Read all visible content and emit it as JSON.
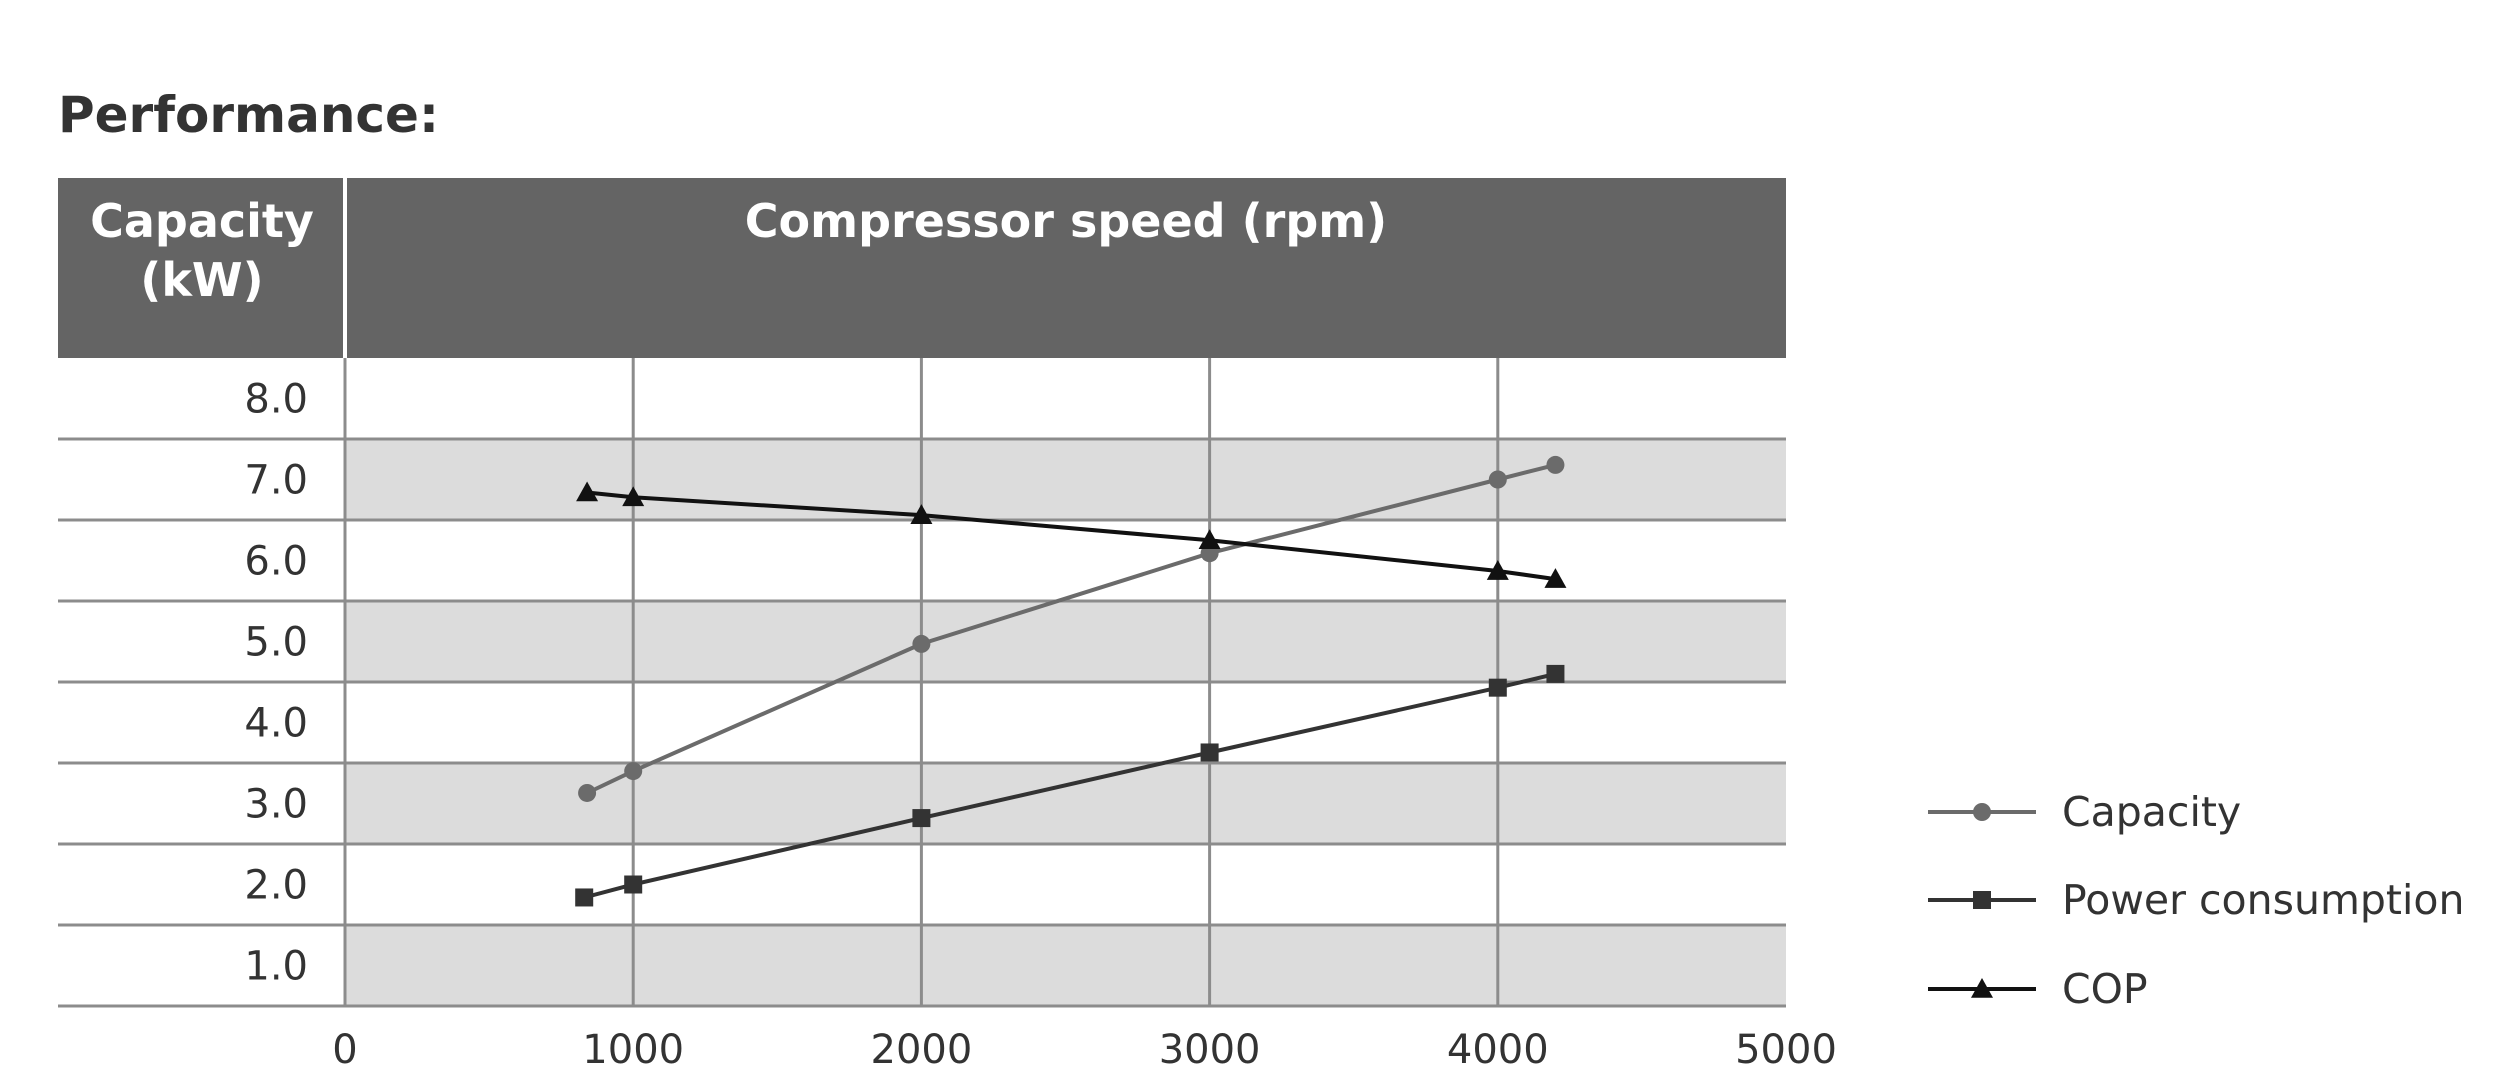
{
  "title": "Performance:",
  "header": {
    "left_line1": "Capacity",
    "left_line2": "(kW)",
    "main": "Compressor speed (rpm)"
  },
  "chart_data": {
    "type": "line",
    "title": "Performance:",
    "xlabel": "Compressor speed (rpm)",
    "ylabel": "Capacity (kW)",
    "xlim": [
      0,
      5000
    ],
    "ylim": [
      0.5,
      8.5
    ],
    "x_ticks": [
      "0",
      "1000",
      "2000",
      "3000",
      "4000",
      "5000"
    ],
    "y_ticks": [
      "1.0",
      "2.0",
      "3.0",
      "4.0",
      "5.0",
      "6.0",
      "7.0",
      "8.0"
    ],
    "grid": "alternating horizontal bands with vertical gridlines",
    "legend": "right",
    "series": [
      {
        "name": "Capacity",
        "marker": "circle",
        "color": "#6b6b6b",
        "points": [
          [
            840,
            3.13
          ],
          [
            1000,
            3.4
          ],
          [
            2000,
            4.97
          ],
          [
            3000,
            6.09
          ],
          [
            4000,
            7.0
          ],
          [
            4200,
            7.18
          ]
        ]
      },
      {
        "name": "Power consumption",
        "marker": "square",
        "color": "#333333",
        "points": [
          [
            830,
            1.84
          ],
          [
            1000,
            2.0
          ],
          [
            2000,
            2.82
          ],
          [
            3000,
            3.63
          ],
          [
            4000,
            4.43
          ],
          [
            4200,
            4.6
          ]
        ]
      },
      {
        "name": "COP",
        "marker": "triangle",
        "color": "#111111",
        "points": [
          [
            840,
            6.84
          ],
          [
            1000,
            6.78
          ],
          [
            2000,
            6.56
          ],
          [
            3000,
            6.25
          ],
          [
            4000,
            5.87
          ],
          [
            4200,
            5.77
          ]
        ]
      }
    ]
  },
  "colors": {
    "header_bg": "#646464",
    "band_gray": "#dcdcdc",
    "grid_line": "#8c8c8c",
    "text": "#333333"
  }
}
